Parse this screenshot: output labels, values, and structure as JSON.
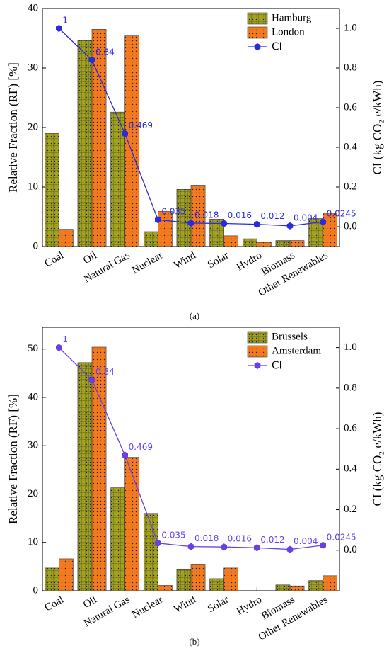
{
  "chart_data": [
    {
      "type": "bar",
      "caption": "(a)",
      "legend": "upper right",
      "ylabel": "Relative Fraction (RF) [%]",
      "y2label": "CI (kg CO₂ e/kWh)",
      "categories": [
        "Coal",
        "Oil",
        "Natural Gas",
        "Nuclear",
        "Wind",
        "Solar",
        "Hydro",
        "Biomass",
        "Other Renewables"
      ],
      "series": [
        {
          "name": "Hamburg",
          "type": "bar",
          "color": "#a3a31f",
          "values": [
            19,
            34.6,
            22.6,
            2.5,
            9.6,
            4.6,
            1.3,
            1.0,
            4.7
          ]
        },
        {
          "name": "London",
          "type": "bar",
          "color": "#f47a1f",
          "values": [
            2.9,
            36.5,
            35.4,
            5.9,
            10.3,
            1.8,
            0.7,
            1.0,
            5.6
          ]
        },
        {
          "name": "CI",
          "type": "line",
          "axis": "y2",
          "color": "#2a2ae0",
          "values": [
            1,
            0.84,
            0.469,
            0.035,
            0.018,
            0.016,
            0.012,
            0.004,
            0.0245
          ]
        }
      ],
      "ylim": [
        0,
        40
      ],
      "yticks": [
        0,
        10,
        20,
        30,
        40
      ],
      "y2lim": [
        -0.1,
        1.1
      ],
      "y2ticks": [
        {
          "value": 0,
          "label": "0.0"
        },
        0.2,
        0.4,
        0.6,
        0.8,
        {
          "value": 1,
          "label": "1.0"
        }
      ]
    },
    {
      "type": "bar",
      "caption": "(b)",
      "legend": "upper right",
      "ylabel": "Relative Fraction (RF) [%]",
      "y2label": "CI (kg CO₂ e/kWh)",
      "categories": [
        "Coal",
        "Oil",
        "Natural Gas",
        "Nuclear",
        "Wind",
        "Solar",
        "Hydro",
        "Biomass",
        "Other Renewables"
      ],
      "series": [
        {
          "name": "Brussels",
          "type": "bar",
          "color": "#a3a31f",
          "values": [
            4.7,
            47.2,
            21.3,
            16.0,
            4.5,
            2.5,
            0,
            1.2,
            2.1
          ]
        },
        {
          "name": "Amsterdam",
          "type": "bar",
          "color": "#f47a1f",
          "values": [
            6.6,
            50.4,
            27.6,
            1.1,
            5.5,
            4.7,
            0,
            1.0,
            3.1
          ]
        },
        {
          "name": "CI",
          "type": "line",
          "axis": "y2",
          "color": "#6a3fe6",
          "values": [
            1,
            0.84,
            0.469,
            0.035,
            0.018,
            0.016,
            0.012,
            0.004,
            0.0245
          ]
        }
      ],
      "ylim": [
        0,
        54.5
      ],
      "yticks": [
        0,
        10,
        20,
        30,
        40,
        50
      ],
      "y2lim": [
        -0.2,
        1.1
      ],
      "y2ticks": [
        {
          "value": 0,
          "label": "0.0"
        },
        0.2,
        0.4,
        0.6,
        0.8,
        {
          "value": 1,
          "label": "1.0"
        }
      ]
    }
  ]
}
